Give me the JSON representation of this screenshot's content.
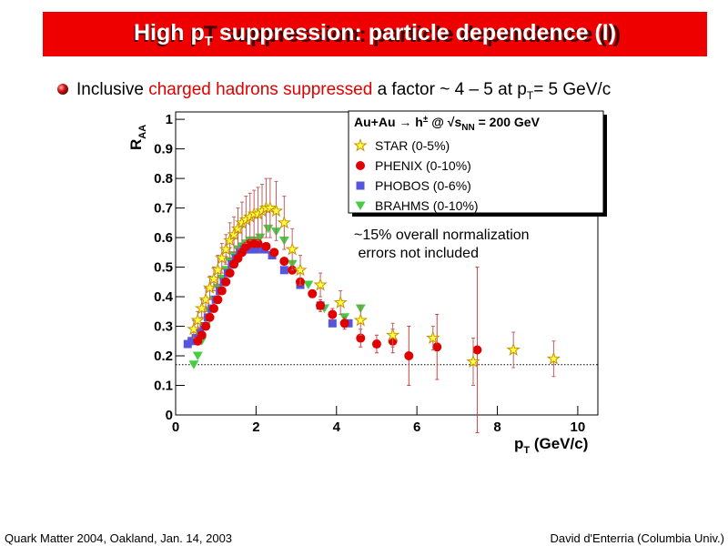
{
  "title": [
    "High p",
    "T",
    " suppression: particle dependence (I)"
  ],
  "bullet": [
    "Inclusive ",
    "charged hadrons suppressed",
    " a factor ~ 4 – 5 at p",
    "T",
    "= 5 GeV/c"
  ],
  "footer": {
    "left": "Quark Matter 2004, Oakland, Jan. 14, 2003",
    "right": "David d'Enterria (Columbia Univ.)"
  },
  "chart_data": {
    "type": "scatter",
    "xlabel": [
      "p",
      "T",
      " (GeV/c)"
    ],
    "ylabel": [
      "R",
      "AA"
    ],
    "legend_title": [
      "Au+Au → h",
      "±",
      " @ √",
      "s",
      "NN",
      " = 200 GeV"
    ],
    "annotation": [
      "~15% overall normalization",
      " errors not included"
    ],
    "xlim": [
      0,
      10.5
    ],
    "ylim": [
      0,
      1.025
    ],
    "xticks": [
      0,
      2,
      4,
      6,
      8,
      10
    ],
    "yticks": [
      0,
      0.1,
      0.2,
      0.3,
      0.4,
      0.5,
      0.6,
      0.7,
      0.8,
      0.9,
      1
    ],
    "reference_line": 0.17,
    "series": [
      {
        "name": "STAR (0-5%)",
        "marker": "star",
        "color": "#ffff40",
        "x": [
          0.45,
          0.55,
          0.65,
          0.75,
          0.85,
          0.95,
          1.05,
          1.15,
          1.25,
          1.35,
          1.45,
          1.55,
          1.65,
          1.75,
          1.85,
          1.95,
          2.05,
          2.15,
          2.25,
          2.35,
          2.5,
          2.7,
          2.9,
          3.1,
          3.6,
          4.1,
          4.6,
          5.4,
          6.4,
          7.4,
          8.4,
          9.4
        ],
        "y": [
          0.29,
          0.32,
          0.36,
          0.39,
          0.43,
          0.46,
          0.49,
          0.53,
          0.56,
          0.59,
          0.61,
          0.63,
          0.65,
          0.66,
          0.67,
          0.68,
          0.68,
          0.69,
          0.7,
          0.7,
          0.69,
          0.65,
          0.56,
          0.49,
          0.44,
          0.38,
          0.32,
          0.27,
          0.26,
          0.18,
          0.22,
          0.19
        ],
        "errors": [
          0.03,
          0.03,
          0.03,
          0.04,
          0.04,
          0.04,
          0.05,
          0.05,
          0.05,
          0.06,
          0.06,
          0.07,
          0.07,
          0.08,
          0.08,
          0.08,
          0.09,
          0.09,
          0.1,
          0.1,
          0.1,
          0.09,
          0.07,
          0.05,
          0.04,
          0.04,
          0.05,
          0.04,
          0.04,
          0.08,
          0.06,
          0.06
        ]
      },
      {
        "name": "PHENIX (0-10%)",
        "marker": "circle",
        "color": "#e00000",
        "x": [
          0.55,
          0.65,
          0.75,
          0.85,
          0.95,
          1.05,
          1.15,
          1.25,
          1.35,
          1.45,
          1.55,
          1.65,
          1.75,
          1.85,
          1.95,
          2.05,
          2.25,
          2.45,
          2.7,
          2.9,
          3.1,
          3.4,
          3.6,
          3.9,
          4.2,
          4.6,
          5.0,
          5.4,
          5.8,
          6.5,
          7.5
        ],
        "y": [
          0.25,
          0.27,
          0.3,
          0.33,
          0.36,
          0.39,
          0.42,
          0.45,
          0.48,
          0.51,
          0.53,
          0.55,
          0.57,
          0.58,
          0.58,
          0.58,
          0.57,
          0.55,
          0.52,
          0.49,
          0.45,
          0.41,
          0.37,
          0.34,
          0.31,
          0.26,
          0.24,
          0.25,
          0.2,
          0.23,
          0.22
        ],
        "errors": [
          0.01,
          0.01,
          0.01,
          0.01,
          0.01,
          0.01,
          0.01,
          0.01,
          0.01,
          0.01,
          0.01,
          0.01,
          0.01,
          0.01,
          0.01,
          0.01,
          0.01,
          0.01,
          0.01,
          0.01,
          0.01,
          0.01,
          0.02,
          0.02,
          0.02,
          0.03,
          0.03,
          0.04,
          0.1,
          0.11,
          0.28
        ]
      },
      {
        "name": "PHOBOS (0-6%)",
        "marker": "square",
        "color": "#5555dd",
        "x": [
          0.3,
          0.4,
          0.5,
          0.6,
          0.7,
          0.8,
          0.9,
          1.0,
          1.1,
          1.2,
          1.3,
          1.4,
          1.5,
          1.6,
          1.7,
          1.8,
          1.9,
          2.0,
          2.2,
          2.4,
          2.7,
          3.1,
          3.6,
          3.9,
          4.3
        ],
        "y": [
          0.24,
          0.25,
          0.26,
          0.28,
          0.3,
          0.33,
          0.36,
          0.39,
          0.42,
          0.45,
          0.48,
          0.51,
          0.53,
          0.55,
          0.56,
          0.56,
          0.56,
          0.56,
          0.56,
          0.54,
          0.49,
          0.44,
          0.37,
          0.31,
          0.31
        ]
      },
      {
        "name": "BRAHMS (0-10%)",
        "marker": "triangle",
        "color": "#44cc44",
        "x": [
          0.45,
          0.55,
          0.65,
          0.75,
          0.85,
          0.95,
          1.05,
          1.15,
          1.25,
          1.35,
          1.45,
          1.55,
          1.65,
          1.75,
          1.85,
          1.95,
          2.1,
          2.3,
          2.5,
          2.7,
          2.9,
          3.3,
          3.7,
          4.2,
          4.6
        ],
        "y": [
          0.17,
          0.2,
          0.25,
          0.3,
          0.35,
          0.39,
          0.43,
          0.46,
          0.49,
          0.52,
          0.54,
          0.56,
          0.57,
          0.58,
          0.59,
          0.59,
          0.6,
          0.63,
          0.62,
          0.59,
          0.51,
          0.44,
          0.36,
          0.33,
          0.36
        ]
      }
    ]
  }
}
